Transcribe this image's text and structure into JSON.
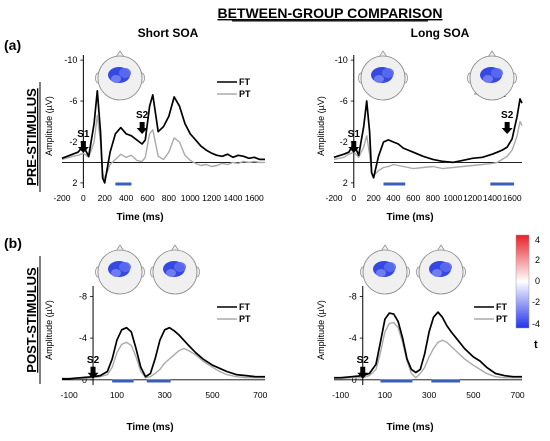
{
  "figure": {
    "title": "BETWEEN-GROUP COMPARISON",
    "panel_a_label": "(a)",
    "panel_b_label": "(b)",
    "col_short": "Short SOA",
    "col_long": "Long SOA",
    "row_pre": "PRE-STIMULUS",
    "row_post": "POST-STIMULUS",
    "ylabel": "Amplitude (µV)",
    "xlabel": "Time (ms)",
    "colorbar": {
      "label": "t",
      "ticks": [
        "4",
        "2",
        "0",
        "-2",
        "-4"
      ],
      "colors": [
        "#e8202a",
        "#ffffff",
        "#2233ee"
      ]
    },
    "colors": {
      "ft": "#000000",
      "pt": "#aaaaaa",
      "bar": "#3a5fb8",
      "scalp_bg": "#f0f0f0"
    },
    "icons": [
      "scalp-topography-icon",
      "down-arrow-icon"
    ]
  },
  "chart_data": [
    {
      "id": "pre_short",
      "type": "line",
      "xlabel": "Time (ms)",
      "ylabel": "Amplitude (µV)",
      "xlim": [
        -200,
        1700
      ],
      "ylim": [
        2.5,
        -10.5
      ],
      "y_inverted": true,
      "x_ticks": [
        "-200",
        "0",
        "200",
        "400",
        "600",
        "800",
        "1000",
        "1200",
        "1400",
        "1600"
      ],
      "y_ticks": [
        "-10",
        "-6",
        "-2",
        "2"
      ],
      "stimulus_markers": [
        {
          "label": "S1",
          "x": 0
        },
        {
          "label": "S2",
          "x": 550
        }
      ],
      "significance_bars": [
        [
          300,
          450
        ]
      ],
      "topomaps": 1,
      "series": [
        {
          "name": "FT",
          "x": [
            -200,
            -100,
            -50,
            0,
            50,
            100,
            130,
            160,
            180,
            200,
            250,
            300,
            350,
            400,
            450,
            500,
            550,
            580,
            620,
            650,
            700,
            750,
            800,
            850,
            900,
            950,
            1000,
            1050,
            1100,
            1150,
            1200,
            1250,
            1300,
            1350,
            1400,
            1450,
            1500,
            1550,
            1600,
            1650,
            1700
          ],
          "y": [
            -0.4,
            -0.8,
            -1.0,
            -1.6,
            -0.6,
            -3.8,
            -7.0,
            -3.0,
            1.5,
            2.0,
            -1.0,
            -2.8,
            -3.4,
            -2.8,
            -2.6,
            -2.2,
            -1.8,
            -2.2,
            -5.5,
            -6.6,
            -3.0,
            -3.5,
            -4.5,
            -6.4,
            -5.5,
            -3.8,
            -2.8,
            -2.2,
            -1.6,
            -1.2,
            -0.9,
            -0.7,
            -0.6,
            -0.8,
            -0.5,
            -0.7,
            -0.6,
            -0.4,
            -0.5,
            -0.3,
            -0.3
          ]
        },
        {
          "name": "PT",
          "x": [
            -200,
            -100,
            -50,
            0,
            50,
            100,
            130,
            160,
            180,
            200,
            250,
            300,
            350,
            400,
            450,
            500,
            550,
            580,
            620,
            650,
            700,
            750,
            800,
            850,
            900,
            950,
            1000,
            1050,
            1100,
            1150,
            1200,
            1250,
            1300,
            1350,
            1400,
            1450,
            1500,
            1550,
            1600,
            1650,
            1700
          ],
          "y": [
            -0.3,
            -0.6,
            -0.7,
            -0.9,
            -0.5,
            -2.0,
            -4.6,
            -2.0,
            1.0,
            1.6,
            0.2,
            -0.3,
            -0.8,
            -0.5,
            -0.7,
            -0.2,
            -0.1,
            -0.5,
            -2.8,
            -3.2,
            -0.6,
            -0.3,
            -1.0,
            -2.4,
            -2.0,
            -0.7,
            -0.2,
            0.1,
            0.3,
            0.2,
            0.4,
            0.3,
            0.1,
            0.2,
            0.0,
            0.1,
            -0.1,
            0.0,
            -0.1,
            0.0,
            0.0
          ]
        }
      ]
    },
    {
      "id": "pre_long",
      "type": "line",
      "xlabel": "Time (ms)",
      "ylabel": "Amplitude (µV)",
      "xlim": [
        -200,
        1700
      ],
      "ylim": [
        2.5,
        -10.5
      ],
      "y_inverted": true,
      "x_ticks": [
        "-200",
        "0",
        "200",
        "400",
        "600",
        "800",
        "1000",
        "1200",
        "1400",
        "1600"
      ],
      "y_ticks": [
        "-10",
        "-6",
        "-2",
        "2"
      ],
      "stimulus_markers": [
        {
          "label": "S1",
          "x": 0
        },
        {
          "label": "S2",
          "x": 1550
        }
      ],
      "significance_bars": [
        [
          300,
          520
        ],
        [
          1380,
          1620
        ]
      ],
      "topomaps": 2,
      "series": [
        {
          "name": "FT",
          "x": [
            -200,
            -100,
            -50,
            0,
            50,
            100,
            130,
            160,
            180,
            200,
            250,
            300,
            350,
            400,
            450,
            500,
            550,
            600,
            700,
            800,
            900,
            1000,
            1100,
            1200,
            1300,
            1400,
            1450,
            1500,
            1550,
            1600,
            1650,
            1680,
            1700
          ],
          "y": [
            -0.5,
            -0.8,
            -1.0,
            -1.8,
            -0.7,
            -3.5,
            -6.0,
            -3.0,
            1.0,
            1.5,
            -0.6,
            -2.0,
            -2.2,
            -2.0,
            -1.8,
            -1.4,
            -1.2,
            -1.0,
            -0.6,
            -0.3,
            -0.1,
            0.0,
            -0.2,
            -0.4,
            -0.5,
            -0.8,
            -1.0,
            -1.2,
            -1.5,
            -2.3,
            -4.5,
            -6.2,
            -5.8
          ]
        },
        {
          "name": "PT",
          "x": [
            -200,
            -100,
            -50,
            0,
            50,
            100,
            130,
            160,
            180,
            200,
            250,
            300,
            350,
            400,
            450,
            500,
            550,
            600,
            700,
            800,
            900,
            1000,
            1100,
            1200,
            1300,
            1400,
            1450,
            1500,
            1550,
            1600,
            1650,
            1680,
            1700
          ],
          "y": [
            -0.3,
            -0.5,
            -0.8,
            -1.0,
            -0.5,
            -1.5,
            -2.6,
            -0.8,
            1.0,
            1.3,
            0.8,
            0.5,
            0.4,
            0.2,
            0.3,
            0.4,
            0.5,
            0.6,
            0.5,
            0.4,
            0.6,
            0.5,
            0.4,
            0.3,
            0.2,
            0.1,
            0.0,
            -0.3,
            -0.6,
            -1.2,
            -2.6,
            -4.0,
            -3.6
          ]
        }
      ]
    },
    {
      "id": "post_short",
      "type": "line",
      "xlabel": "Time (ms)",
      "ylabel": "Amplitude (µV)",
      "xlim": [
        -130,
        720
      ],
      "ylim": [
        0.5,
        -9
      ],
      "y_inverted": true,
      "x_ticks": [
        "-100",
        "100",
        "300",
        "500",
        "700"
      ],
      "y_ticks": [
        "-8",
        "-4",
        "0"
      ],
      "stimulus_markers": [
        {
          "label": "S2",
          "x": 0
        }
      ],
      "significance_bars": [
        [
          80,
          170
        ],
        [
          225,
          325
        ]
      ],
      "topomaps": 2,
      "series": [
        {
          "name": "FT",
          "x": [
            -130,
            -100,
            -50,
            0,
            30,
            60,
            80,
            100,
            120,
            140,
            160,
            180,
            200,
            220,
            240,
            260,
            280,
            300,
            320,
            340,
            360,
            380,
            400,
            430,
            460,
            500,
            530,
            560,
            600,
            640,
            680,
            720
          ],
          "y": [
            -0.1,
            -0.1,
            -0.2,
            -0.3,
            -0.4,
            -0.8,
            -2.0,
            -3.8,
            -4.8,
            -5.0,
            -4.6,
            -3.0,
            -1.2,
            -0.3,
            -0.6,
            -2.0,
            -3.8,
            -4.8,
            -5.0,
            -4.7,
            -4.3,
            -3.8,
            -3.3,
            -2.6,
            -2.0,
            -1.4,
            -1.1,
            -0.8,
            -0.5,
            -0.4,
            -0.3,
            -0.3
          ]
        },
        {
          "name": "PT",
          "x": [
            -130,
            -100,
            -50,
            0,
            30,
            60,
            80,
            100,
            120,
            140,
            160,
            180,
            200,
            220,
            240,
            260,
            280,
            300,
            320,
            340,
            360,
            380,
            400,
            430,
            460,
            500,
            530,
            560,
            600,
            640,
            680,
            720
          ],
          "y": [
            -0.1,
            -0.1,
            -0.1,
            -0.2,
            -0.3,
            -0.5,
            -1.2,
            -2.6,
            -3.4,
            -3.6,
            -3.3,
            -2.2,
            -0.8,
            -0.2,
            -0.3,
            -0.6,
            -1.0,
            -1.6,
            -2.0,
            -2.4,
            -2.8,
            -3.0,
            -2.8,
            -2.4,
            -1.8,
            -1.2,
            -0.8,
            -0.5,
            -0.3,
            -0.2,
            -0.2,
            -0.2
          ]
        }
      ]
    },
    {
      "id": "post_long",
      "type": "line",
      "xlabel": "Time (ms)",
      "ylabel": "Amplitude (µV)",
      "xlim": [
        -130,
        720
      ],
      "ylim": [
        0.5,
        -9
      ],
      "y_inverted": true,
      "x_ticks": [
        "-100",
        "100",
        "300",
        "500",
        "700"
      ],
      "y_ticks": [
        "-8",
        "-4",
        "0"
      ],
      "stimulus_markers": [
        {
          "label": "S2",
          "x": 0
        }
      ],
      "significance_bars": [
        [
          80,
          225
        ],
        [
          310,
          440
        ]
      ],
      "topomaps": 2,
      "series": [
        {
          "name": "FT",
          "x": [
            -130,
            -100,
            -50,
            0,
            30,
            60,
            80,
            100,
            120,
            140,
            160,
            180,
            200,
            220,
            240,
            260,
            280,
            300,
            320,
            340,
            360,
            380,
            400,
            430,
            460,
            500,
            530,
            560,
            600,
            640,
            680,
            720
          ],
          "y": [
            -0.2,
            -0.2,
            -0.3,
            -0.4,
            -0.6,
            -1.5,
            -3.6,
            -5.8,
            -6.4,
            -6.3,
            -5.6,
            -4.0,
            -2.0,
            -1.0,
            -0.7,
            -1.0,
            -2.5,
            -4.6,
            -6.0,
            -6.5,
            -6.0,
            -5.2,
            -4.6,
            -3.8,
            -3.0,
            -2.2,
            -1.8,
            -1.2,
            -0.6,
            -0.4,
            -0.3,
            -0.3
          ]
        },
        {
          "name": "PT",
          "x": [
            -130,
            -100,
            -50,
            0,
            30,
            60,
            80,
            100,
            120,
            140,
            160,
            180,
            200,
            220,
            240,
            260,
            280,
            300,
            320,
            340,
            360,
            380,
            400,
            430,
            460,
            500,
            530,
            560,
            600,
            640,
            680,
            720
          ],
          "y": [
            -0.1,
            -0.1,
            -0.2,
            -0.2,
            -0.4,
            -1.0,
            -2.6,
            -4.6,
            -5.4,
            -5.5,
            -5.0,
            -3.6,
            -1.8,
            -0.6,
            -0.2,
            -0.6,
            -1.2,
            -2.2,
            -3.0,
            -3.6,
            -3.8,
            -3.6,
            -3.2,
            -2.6,
            -2.0,
            -1.4,
            -1.0,
            -0.6,
            -0.3,
            -0.2,
            -0.2,
            -0.2
          ]
        }
      ]
    }
  ]
}
